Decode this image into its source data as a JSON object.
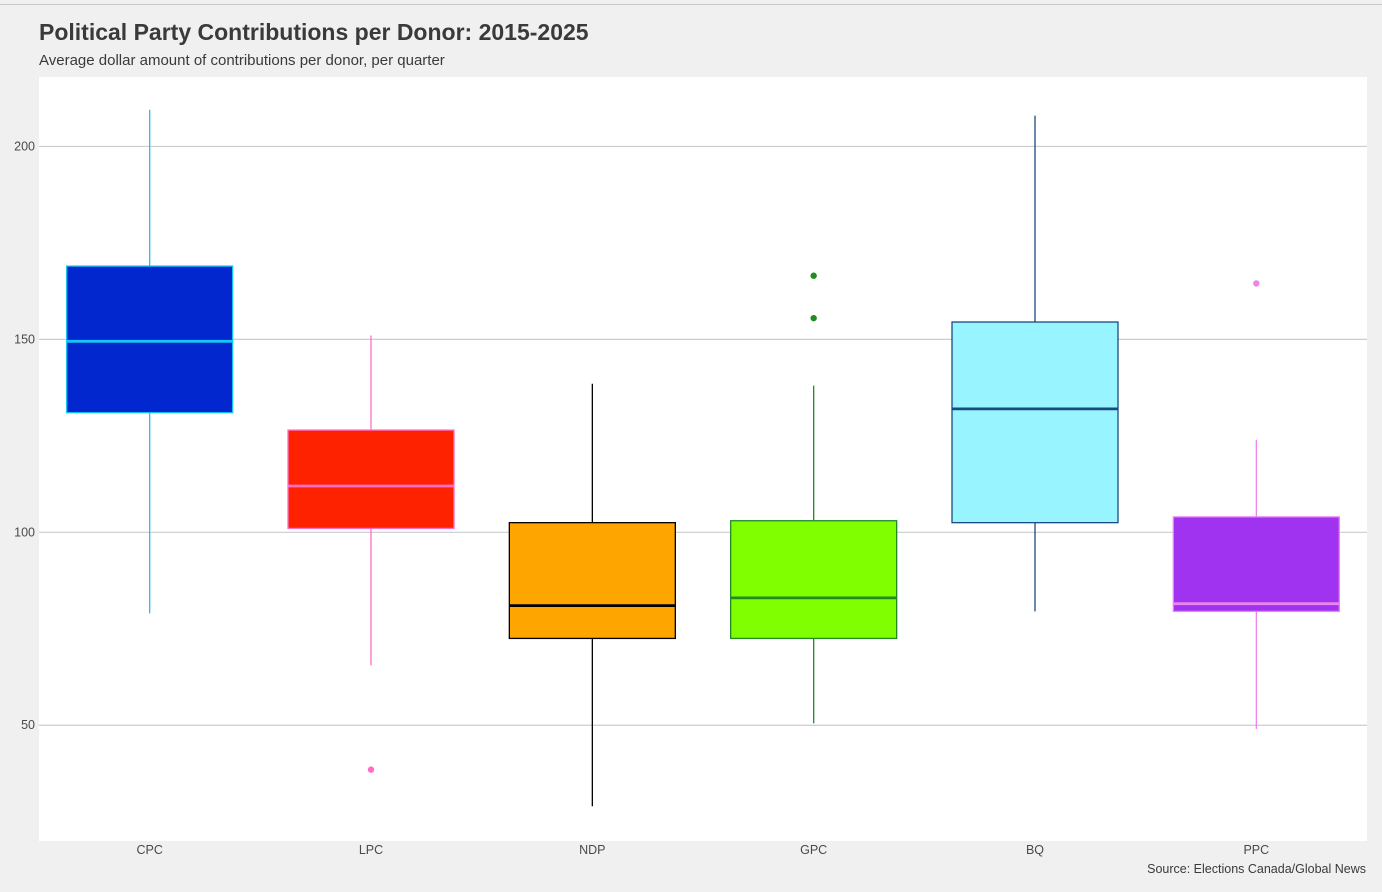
{
  "chart_data": {
    "type": "boxplot",
    "title": "Political Party Contributions per Donor: 2015-2025",
    "subtitle": "Average dollar amount of contributions per donor, per quarter",
    "caption": "Source: Elections Canada/Global News",
    "xlabel": "",
    "ylabel": "",
    "ylim": [
      20,
      218
    ],
    "yticks": [
      50,
      100,
      150,
      200
    ],
    "grid": "horizontal",
    "categories": [
      "CPC",
      "LPC",
      "NDP",
      "GPC",
      "BQ",
      "PPC"
    ],
    "boxes": [
      {
        "category": "CPC",
        "min": 79,
        "q1": 131,
        "median": 149.5,
        "q3": 169,
        "max": 209.5,
        "outliers": [],
        "fill": "#0327cf",
        "line": "#16c4f5"
      },
      {
        "category": "LPC",
        "min": 65.5,
        "q1": 101,
        "median": 112,
        "q3": 126.5,
        "max": 151,
        "outliers": [
          38.5
        ],
        "fill": "#ff2200",
        "line": "#ff6ec7"
      },
      {
        "category": "NDP",
        "min": 29,
        "q1": 72.5,
        "median": 81,
        "q3": 102.5,
        "max": 138.5,
        "outliers": [],
        "fill": "#ffa500",
        "line": "#000000"
      },
      {
        "category": "GPC",
        "min": 50.5,
        "q1": 72.5,
        "median": 83,
        "q3": 103,
        "max": 138,
        "outliers": [
          155.5,
          166.5
        ],
        "fill": "#80ff00",
        "line": "#228b22"
      },
      {
        "category": "BQ",
        "min": 79.5,
        "q1": 102.5,
        "median": 132,
        "q3": 154.5,
        "max": 208,
        "outliers": [],
        "fill": "#98f5ff",
        "line": "#1a4a80"
      },
      {
        "category": "PPC",
        "min": 49,
        "q1": 79.5,
        "median": 81.5,
        "q3": 104,
        "max": 124,
        "outliers": [
          164.5
        ],
        "fill": "#a033f0",
        "line": "#ee82ee"
      }
    ],
    "panel_background": "#ffffff",
    "page_background": "#f0f0f0",
    "gridline_color": "#cccccc"
  }
}
